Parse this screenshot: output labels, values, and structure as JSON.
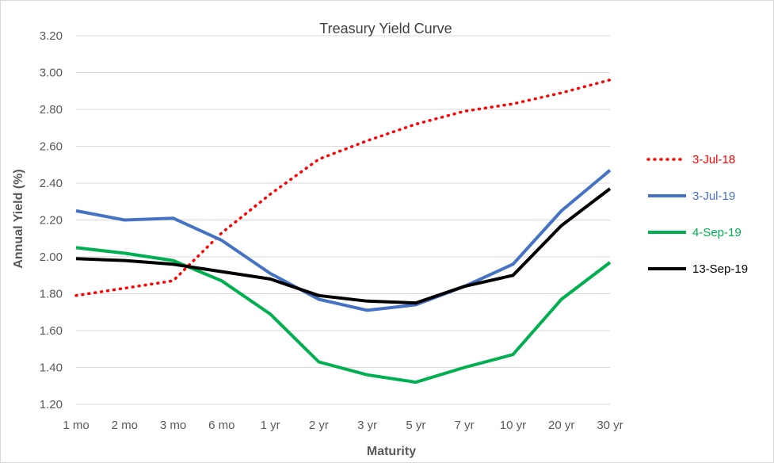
{
  "chart_data": {
    "type": "line",
    "title": "Treasury Yield Curve",
    "xlabel": "Maturity",
    "ylabel": "Annual Yield (%)",
    "categories": [
      "1 mo",
      "2 mo",
      "3 mo",
      "6 mo",
      "1 yr",
      "2 yr",
      "3 yr",
      "5 yr",
      "7 yr",
      "10 yr",
      "20 yr",
      "30 yr"
    ],
    "ylim": [
      1.2,
      3.2
    ],
    "yticks": [
      "1.20",
      "1.40",
      "1.60",
      "1.80",
      "2.00",
      "2.20",
      "2.40",
      "2.60",
      "2.80",
      "3.00",
      "3.20"
    ],
    "grid": true,
    "legend": "right",
    "series": [
      {
        "name": "3-Jul-18",
        "color": "#ff0000",
        "style": "dotted",
        "values": [
          1.79,
          1.83,
          1.87,
          2.13,
          2.34,
          2.53,
          2.63,
          2.72,
          2.79,
          2.83,
          2.89,
          2.96
        ]
      },
      {
        "name": "3-Jul-19",
        "color": "#4472c4",
        "style": "solid",
        "values": [
          2.25,
          2.2,
          2.21,
          2.09,
          1.91,
          1.77,
          1.71,
          1.74,
          1.84,
          1.96,
          2.25,
          2.47
        ]
      },
      {
        "name": "4-Sep-19",
        "color": "#00b050",
        "style": "solid",
        "values": [
          2.05,
          2.02,
          1.98,
          1.87,
          1.69,
          1.43,
          1.36,
          1.32,
          1.4,
          1.47,
          1.77,
          1.97
        ]
      },
      {
        "name": "13-Sep-19",
        "color": "#000000",
        "style": "solid",
        "values": [
          1.99,
          1.98,
          1.96,
          1.92,
          1.88,
          1.79,
          1.76,
          1.75,
          1.84,
          1.9,
          2.17,
          2.37
        ]
      }
    ]
  }
}
